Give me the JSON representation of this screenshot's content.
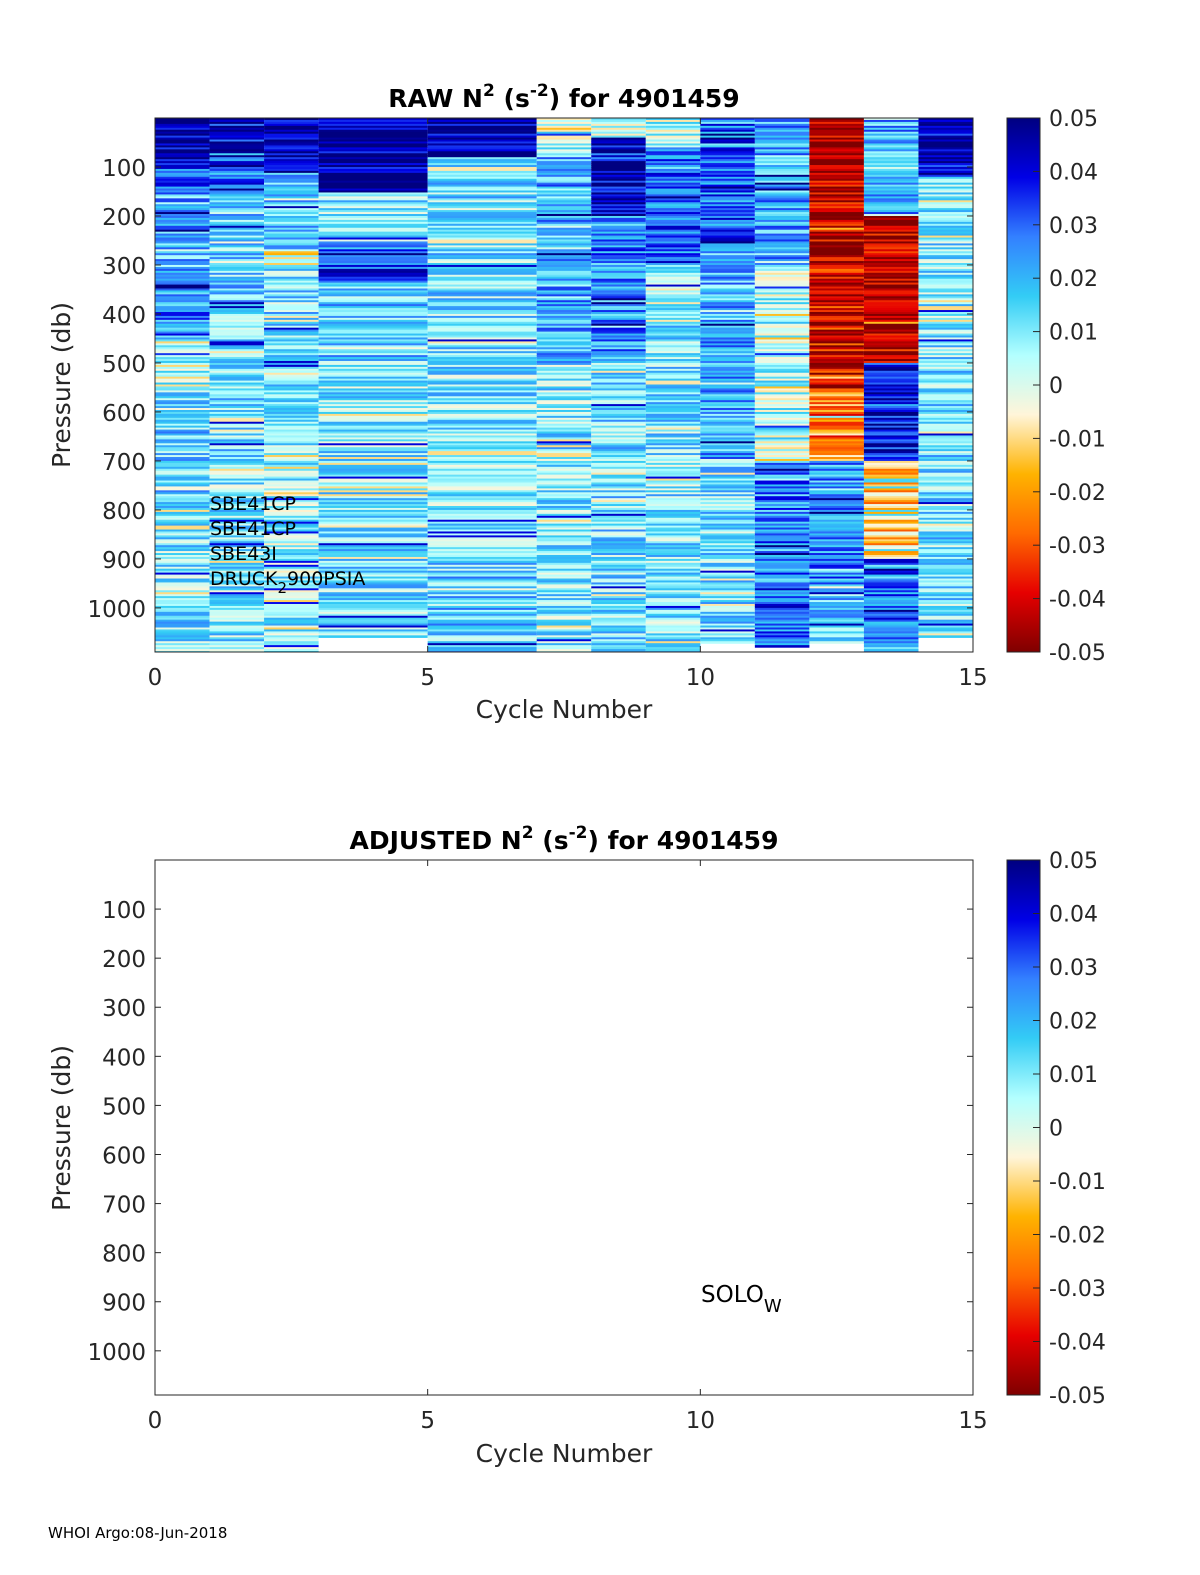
{
  "footer": "WHOI Argo:08-Jun-2018",
  "colors": {
    "colormap": [
      "#7f0000",
      "#e60000",
      "#ff6a00",
      "#ffb300",
      "#fff5d9",
      "#b3ffff",
      "#33ccf5",
      "#3380ff",
      "#0000e6",
      "#000080"
    ],
    "axis": "#262626",
    "nodata": "#ffffff"
  },
  "chart_data": [
    {
      "type": "heatmap",
      "title_prefix": "RAW N",
      "title_sup": "2",
      "title_mid": " (s",
      "title_sup2": "-2",
      "title_suffix": ") for 4901459",
      "xlabel": "Cycle Number",
      "ylabel": "Pressure (db)",
      "xlim": [
        0,
        15
      ],
      "ylim": [
        0,
        1090
      ],
      "xticks": [
        0,
        5,
        10,
        15
      ],
      "yticks": [
        100,
        200,
        300,
        400,
        500,
        600,
        700,
        800,
        900,
        1000
      ],
      "clim": [
        -0.05,
        0.05
      ],
      "colorbar_ticks": [
        "0.05",
        "0.04",
        "0.03",
        "0.02",
        "0.01",
        "0",
        "-0.01",
        "-0.02",
        "-0.03",
        "-0.04",
        "-0.05"
      ],
      "cycles": [
        {
          "cycle": 1,
          "x": [
            0,
            1
          ],
          "pmax": 1090
        },
        {
          "cycle": 2,
          "x": [
            1,
            2
          ],
          "pmax": 1090
        },
        {
          "cycle": 3,
          "x": [
            2,
            3
          ],
          "pmax": 1090
        },
        {
          "cycle": 4,
          "x": [
            3,
            5
          ],
          "pmax": 1060
        },
        {
          "cycle": 6,
          "x": [
            5,
            7
          ],
          "pmax": 1090
        },
        {
          "cycle": 8,
          "x": [
            7,
            8
          ],
          "pmax": 1090
        },
        {
          "cycle": 9,
          "x": [
            8,
            9
          ],
          "pmax": 1090
        },
        {
          "cycle": 10,
          "x": [
            9,
            10
          ],
          "pmax": 1090
        },
        {
          "cycle": 11,
          "x": [
            10,
            11
          ],
          "pmax": 1070
        },
        {
          "cycle": 12,
          "x": [
            11,
            12
          ],
          "pmax": 1080
        },
        {
          "cycle": 13,
          "x": [
            12,
            13
          ],
          "pmax": 1070
        },
        {
          "cycle": 14,
          "x": [
            13,
            14
          ],
          "pmax": 1090
        },
        {
          "cycle": 15,
          "x": [
            14,
            15
          ],
          "pmax": 1060
        }
      ],
      "profile_segments": [
        {
          "x": [
            0,
            1
          ],
          "segments": [
            [
              0,
              100,
              0.048
            ],
            [
              100,
              150,
              0.03
            ],
            [
              150,
              300,
              0.02
            ],
            [
              300,
              450,
              0.025
            ],
            [
              450,
              560,
              0.004
            ],
            [
              560,
              800,
              0.015
            ],
            [
              800,
              1000,
              0.01
            ],
            [
              1000,
              1090,
              0.012
            ]
          ]
        },
        {
          "x": [
            1,
            2
          ],
          "segments": [
            [
              0,
              60,
              0.048
            ],
            [
              60,
              150,
              0.035
            ],
            [
              150,
              400,
              0.015
            ],
            [
              400,
              700,
              0.012
            ],
            [
              700,
              1090,
              0.01
            ]
          ]
        },
        {
          "x": [
            2,
            3
          ],
          "segments": [
            [
              0,
              110,
              0.048
            ],
            [
              110,
              270,
              0.015
            ],
            [
              270,
              300,
              -0.004
            ],
            [
              300,
              600,
              0.012
            ],
            [
              600,
              1090,
              0.008
            ]
          ]
        },
        {
          "x": [
            3,
            5
          ],
          "segments": [
            [
              0,
              150,
              0.048
            ],
            [
              150,
              250,
              0.01
            ],
            [
              250,
              330,
              0.035
            ],
            [
              330,
              500,
              0.015
            ],
            [
              500,
              800,
              0.01
            ],
            [
              800,
              1060,
              0.012
            ]
          ]
        },
        {
          "x": [
            5,
            7
          ],
          "segments": [
            [
              0,
              80,
              0.048
            ],
            [
              80,
              500,
              0.012
            ],
            [
              500,
              900,
              0.01
            ],
            [
              900,
              1090,
              0.015
            ]
          ]
        },
        {
          "x": [
            7,
            8
          ],
          "segments": [
            [
              0,
              80,
              0.005
            ],
            [
              80,
              500,
              0.02
            ],
            [
              500,
              1090,
              0.01
            ]
          ]
        },
        {
          "x": [
            8,
            9
          ],
          "segments": [
            [
              0,
              40,
              -0.002
            ],
            [
              40,
              200,
              0.045
            ],
            [
              200,
              500,
              0.025
            ],
            [
              500,
              1090,
              0.012
            ]
          ]
        },
        {
          "x": [
            9,
            10
          ],
          "segments": [
            [
              0,
              60,
              0.004
            ],
            [
              60,
              300,
              0.03
            ],
            [
              300,
              700,
              0.012
            ],
            [
              700,
              1090,
              0.01
            ]
          ]
        },
        {
          "x": [
            10,
            11
          ],
          "segments": [
            [
              0,
              250,
              0.03
            ],
            [
              250,
              700,
              0.02
            ],
            [
              700,
              1070,
              0.012
            ]
          ]
        },
        {
          "x": [
            11,
            12
          ],
          "segments": [
            [
              0,
              300,
              0.02
            ],
            [
              300,
              700,
              0.005
            ],
            [
              700,
              950,
              0.025
            ],
            [
              950,
              1080,
              0.03
            ]
          ]
        },
        {
          "x": [
            12,
            13
          ],
          "segments": [
            [
              0,
              300,
              -0.045
            ],
            [
              300,
              550,
              -0.04
            ],
            [
              550,
              700,
              -0.02
            ],
            [
              700,
              950,
              0.025
            ],
            [
              950,
              1070,
              0.015
            ]
          ]
        },
        {
          "x": [
            13,
            14
          ],
          "segments": [
            [
              0,
              200,
              0.02
            ],
            [
              200,
              500,
              -0.045
            ],
            [
              500,
              700,
              0.04
            ],
            [
              700,
              900,
              -0.015
            ],
            [
              900,
              1090,
              0.03
            ]
          ]
        },
        {
          "x": [
            14,
            15
          ],
          "segments": [
            [
              0,
              120,
              0.045
            ],
            [
              120,
              500,
              0.01
            ],
            [
              500,
              1060,
              0.012
            ]
          ]
        }
      ],
      "annotations": [
        "SBE41CP",
        "SBE41CP",
        "SBE43I"
      ],
      "annotation_last": {
        "main": "DRUCK",
        "sub": "2",
        "rest": "900PSIA"
      }
    },
    {
      "type": "heatmap",
      "title_prefix": "ADJUSTED N",
      "title_sup": "2",
      "title_mid": " (s",
      "title_sup2": "-2",
      "title_suffix": ") for 4901459",
      "xlabel": "Cycle Number",
      "ylabel": "Pressure (db)",
      "xlim": [
        0,
        15
      ],
      "ylim": [
        0,
        1090
      ],
      "xticks": [
        0,
        5,
        10,
        15
      ],
      "yticks": [
        100,
        200,
        300,
        400,
        500,
        600,
        700,
        800,
        900,
        1000
      ],
      "clim": [
        -0.05,
        0.05
      ],
      "colorbar_ticks": [
        "0.05",
        "0.04",
        "0.03",
        "0.02",
        "0.01",
        "0",
        "-0.01",
        "-0.02",
        "-0.03",
        "-0.04",
        "-0.05"
      ],
      "empty": true,
      "label": {
        "main": "SOLO",
        "sub": "W"
      }
    }
  ]
}
